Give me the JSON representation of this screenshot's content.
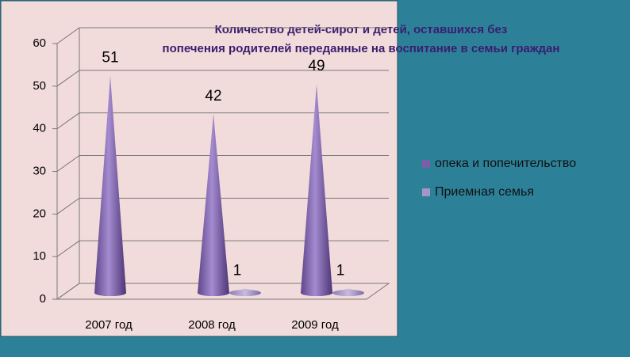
{
  "chart_data": {
    "type": "cone3d",
    "title": "Количество детей-сирот и детей, оставшихся без попечения родителей переданные на воспитание в семьи граждан",
    "categories": [
      "2007 год",
      "2008 год",
      "2009 год"
    ],
    "series": [
      {
        "name": "опека и попечительство",
        "color": "#7b5ea8",
        "values": [
          51,
          42,
          49
        ]
      },
      {
        "name": "Приемная семья",
        "color": "#a596c8",
        "values": [
          null,
          1,
          1
        ]
      }
    ],
    "ylim": [
      0,
      60
    ],
    "yticks": [
      0,
      10,
      20,
      30,
      40,
      50,
      60
    ],
    "grid": true,
    "legend": "right"
  }
}
